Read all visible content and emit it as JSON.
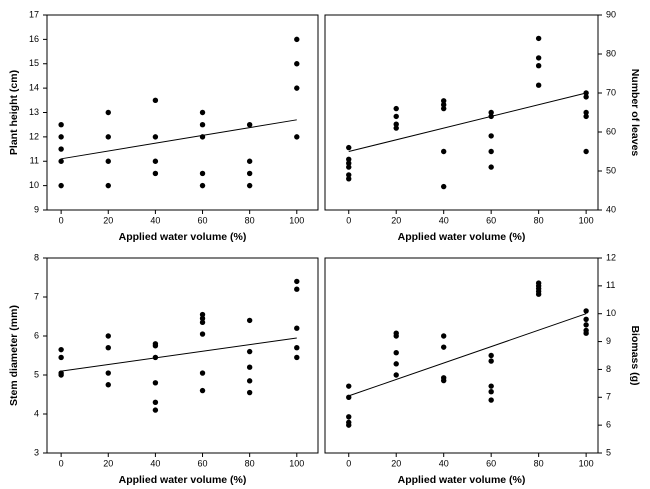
{
  "chart_data": [
    {
      "type": "scatter",
      "x_label": "Applied water volume (%)",
      "y_label": "Plant height (cm)",
      "y_side": "left",
      "color": "#000000",
      "xlim": [
        -6,
        109
      ],
      "ylim": [
        9,
        17
      ],
      "xticks": [
        0,
        20,
        40,
        60,
        80,
        100
      ],
      "yticks": [
        9,
        10,
        11,
        12,
        13,
        14,
        15,
        16,
        17
      ],
      "x": [
        0,
        0,
        0,
        0,
        0,
        20,
        20,
        20,
        20,
        40,
        40,
        40,
        40,
        60,
        60,
        60,
        60,
        60,
        80,
        80,
        80,
        80,
        100,
        100,
        100,
        100
      ],
      "values": [
        12.5,
        12,
        11.5,
        11,
        10,
        13,
        12,
        11,
        10,
        13.5,
        12,
        11,
        10.5,
        13,
        12.5,
        12,
        10.5,
        10,
        12.5,
        11,
        10.5,
        10,
        16,
        15,
        14,
        12
      ],
      "trend": {
        "x": [
          0,
          100
        ],
        "values": [
          11.1,
          12.7
        ]
      }
    },
    {
      "type": "scatter",
      "x_label": "Applied water volume (%)",
      "y_label": "Number of leaves",
      "y_side": "right",
      "color": "#000000",
      "xlim": [
        -10,
        105
      ],
      "ylim": [
        40,
        90
      ],
      "xticks": [
        0,
        20,
        40,
        60,
        80,
        100
      ],
      "yticks": [
        40,
        50,
        60,
        70,
        80,
        90
      ],
      "x": [
        0,
        0,
        0,
        0,
        0,
        0,
        20,
        20,
        20,
        20,
        40,
        40,
        40,
        40,
        40,
        60,
        60,
        60,
        60,
        60,
        80,
        80,
        80,
        80,
        100,
        100,
        100,
        100,
        100
      ],
      "values": [
        56,
        53,
        52,
        51,
        49,
        48,
        66,
        64,
        62,
        61,
        68,
        67,
        66,
        55,
        46,
        65,
        64,
        59,
        55,
        51,
        84,
        79,
        77,
        72,
        70,
        69,
        65,
        64,
        55
      ],
      "trend": {
        "x": [
          0,
          100
        ],
        "values": [
          55,
          70
        ]
      }
    },
    {
      "type": "scatter",
      "x_label": "Applied water volume (%)",
      "y_label": "Stem diameter (mm)",
      "y_side": "left",
      "color": "#000000",
      "xlim": [
        -6,
        109
      ],
      "ylim": [
        3,
        8
      ],
      "xticks": [
        0,
        20,
        40,
        60,
        80,
        100
      ],
      "yticks": [
        3,
        4,
        5,
        6,
        7,
        8
      ],
      "x": [
        0,
        0,
        0,
        0,
        20,
        20,
        20,
        20,
        40,
        40,
        40,
        40,
        40,
        40,
        60,
        60,
        60,
        60,
        60,
        60,
        80,
        80,
        80,
        80,
        80,
        100,
        100,
        100,
        100,
        100
      ],
      "values": [
        5.65,
        5.45,
        5.05,
        5.0,
        6.0,
        5.7,
        5.05,
        4.75,
        5.8,
        5.75,
        5.45,
        4.8,
        4.3,
        4.1,
        6.55,
        6.45,
        6.35,
        6.05,
        5.05,
        4.6,
        6.4,
        5.6,
        5.2,
        4.85,
        4.55,
        7.4,
        7.2,
        6.2,
        5.7,
        5.45
      ],
      "trend": {
        "x": [
          0,
          100
        ],
        "values": [
          5.1,
          5.95
        ]
      }
    },
    {
      "type": "scatter",
      "x_label": "Applied water volume (%)",
      "y_label": "Biomass (g)",
      "y_side": "right",
      "color": "#000000",
      "xlim": [
        -10,
        105
      ],
      "ylim": [
        5,
        12
      ],
      "xticks": [
        0,
        20,
        40,
        60,
        80,
        100
      ],
      "yticks": [
        5,
        6,
        7,
        8,
        9,
        10,
        11,
        12
      ],
      "x": [
        0,
        0,
        0,
        0,
        0,
        20,
        20,
        20,
        20,
        20,
        40,
        40,
        40,
        40,
        60,
        60,
        60,
        60,
        60,
        80,
        80,
        80,
        80,
        80,
        100,
        100,
        100,
        100,
        100
      ],
      "values": [
        7.4,
        7.0,
        6.3,
        6.1,
        6.0,
        9.3,
        9.2,
        8.6,
        8.2,
        7.8,
        9.2,
        8.8,
        7.7,
        7.6,
        8.5,
        8.3,
        7.4,
        7.2,
        6.9,
        11.1,
        11.0,
        10.9,
        10.8,
        10.7,
        10.1,
        9.8,
        9.6,
        9.4,
        9.3
      ],
      "trend": {
        "x": [
          0,
          100
        ],
        "values": [
          7.05,
          10.0
        ]
      }
    }
  ]
}
